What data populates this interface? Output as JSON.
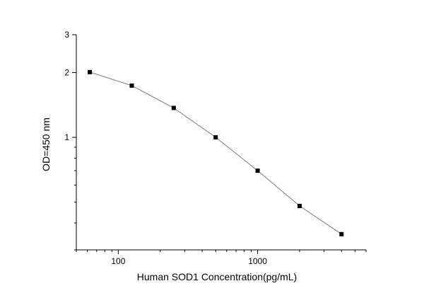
{
  "chart_data": {
    "type": "line",
    "xlabel": "Human SOD1  Concentration(pg/mL)",
    "ylabel": "OD=450 nm",
    "x_scale": "log",
    "y_scale": "log",
    "xlim": [
      50,
      6000
    ],
    "ylim": [
      0.3,
      3
    ],
    "x_ticks": [
      100,
      1000
    ],
    "x_tick_labels": [
      "100",
      "1000"
    ],
    "y_ticks": [
      1,
      2,
      3
    ],
    "y_tick_labels": [
      "1",
      "2",
      "3"
    ],
    "grid": false,
    "legend": "none",
    "colors": {
      "line": "#7a7a7a",
      "marker": "#000000",
      "axis": "#000000"
    },
    "series": [
      {
        "x": [
          62.5,
          125,
          250,
          500,
          1000,
          2000,
          4000
        ],
        "y": [
          2.01,
          1.74,
          1.37,
          1.0,
          0.7,
          0.48,
          0.355
        ]
      }
    ]
  }
}
